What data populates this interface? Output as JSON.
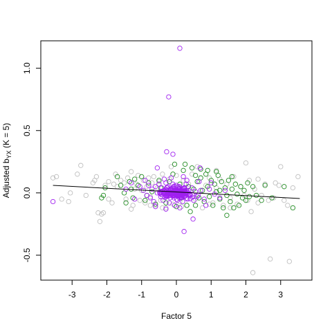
{
  "chart_data": {
    "type": "scatter",
    "xlabel": "Factor 5",
    "ylabel": {
      "main": "Adjusted b",
      "sub": "YX",
      "suffix": " (K = 5)"
    },
    "xlim": [
      -3.9,
      3.9
    ],
    "ylim": [
      -0.7,
      1.22
    ],
    "xticks": [
      -3,
      -2,
      -1,
      0,
      1,
      2,
      3
    ],
    "yticks": [
      -0.5,
      0.0,
      0.5,
      1.0
    ],
    "xtick_labels": [
      "-3",
      "-2",
      "-1",
      "0",
      "1",
      "2",
      "3"
    ],
    "ytick_labels": [
      "-0.5",
      "0.0",
      "0.5",
      "1.0"
    ],
    "grid": false,
    "legend": "none",
    "colors": {
      "gray": "#bebebe",
      "green": "#228b22",
      "purple": "#a020f0",
      "line": "#000000"
    },
    "regression_line": {
      "x": [
        -3.55,
        3.55
      ],
      "y": [
        0.06,
        -0.045
      ]
    },
    "series": [
      {
        "color": "gray",
        "points": [
          [
            -3.55,
            0.12
          ],
          [
            -3.45,
            0.13
          ],
          [
            -3.3,
            -0.05
          ],
          [
            -3.1,
            -0.07
          ],
          [
            -3.05,
            0.0
          ],
          [
            -2.85,
            0.15
          ],
          [
            -2.75,
            0.22
          ],
          [
            -2.6,
            -0.02
          ],
          [
            -2.4,
            0.08
          ],
          [
            -2.3,
            0.13
          ],
          [
            -2.25,
            -0.16
          ],
          [
            -2.2,
            -0.23
          ],
          [
            -2.15,
            -0.17
          ],
          [
            -2.1,
            -0.16
          ],
          [
            -2.05,
            0.06
          ],
          [
            -1.95,
            0.09
          ],
          [
            -1.85,
            -0.08
          ],
          [
            -1.8,
            0.07
          ],
          [
            -1.75,
            0.15
          ],
          [
            -1.7,
            0.05
          ],
          [
            -1.6,
            0.1
          ],
          [
            -1.5,
            0.08
          ],
          [
            -1.45,
            -0.05
          ],
          [
            -1.4,
            0.12
          ],
          [
            -1.3,
            0.17
          ],
          [
            -1.25,
            -0.1
          ],
          [
            -1.2,
            0.03
          ],
          [
            -1.15,
            0.07
          ],
          [
            -1.1,
            0.14
          ],
          [
            -1.05,
            -0.06
          ],
          [
            -1.0,
            0.02
          ],
          [
            -0.95,
            0.1
          ],
          [
            -0.9,
            -0.08
          ],
          [
            -0.85,
            0.05
          ],
          [
            -0.8,
            0.12
          ],
          [
            -0.75,
            -0.03
          ],
          [
            -0.7,
            0.08
          ],
          [
            -0.65,
            0.13
          ],
          [
            -0.6,
            -0.1
          ],
          [
            -0.55,
            0.04
          ],
          [
            -0.5,
            0.09
          ],
          [
            -0.45,
            -0.06
          ],
          [
            -0.4,
            0.15
          ],
          [
            -0.35,
            0.02
          ],
          [
            -0.3,
            -0.12
          ],
          [
            -0.2,
            0.11
          ],
          [
            -0.1,
            -0.09
          ],
          [
            0.0,
            0.14
          ],
          [
            0.1,
            -0.07
          ],
          [
            0.2,
            0.1
          ],
          [
            0.3,
            -0.1
          ],
          [
            0.35,
            0.07
          ],
          [
            0.45,
            0.15
          ],
          [
            0.55,
            -0.05
          ],
          [
            0.65,
            0.09
          ],
          [
            0.75,
            -0.12
          ],
          [
            0.85,
            0.06
          ],
          [
            0.95,
            0.12
          ],
          [
            1.05,
            -0.08
          ],
          [
            1.15,
            0.04
          ],
          [
            1.25,
            0.11
          ],
          [
            1.35,
            -0.1
          ],
          [
            1.45,
            0.07
          ],
          [
            1.55,
            -0.04
          ],
          [
            1.65,
            0.13
          ],
          [
            1.75,
            -0.09
          ],
          [
            1.85,
            0.05
          ],
          [
            1.95,
            -0.02
          ],
          [
            2.0,
            0.24
          ],
          [
            2.05,
            -0.06
          ],
          [
            2.1,
            0.1
          ],
          [
            2.15,
            -0.15
          ],
          [
            2.2,
            -0.64
          ],
          [
            2.25,
            0.03
          ],
          [
            2.35,
            -0.08
          ],
          [
            2.45,
            -0.02
          ],
          [
            2.55,
            0.07
          ],
          [
            2.65,
            -0.06
          ],
          [
            2.7,
            -0.53
          ],
          [
            2.8,
            -0.04
          ],
          [
            2.95,
            0.06
          ],
          [
            3.0,
            0.21
          ],
          [
            3.1,
            -0.06
          ],
          [
            3.2,
            -0.1
          ],
          [
            3.25,
            -0.55
          ],
          [
            3.35,
            0.04
          ],
          [
            3.5,
            0.13
          ],
          [
            -0.15,
            0.21
          ],
          [
            0.6,
            0.21
          ],
          [
            1.15,
            0.18
          ],
          [
            -1.3,
            -0.13
          ],
          [
            -0.4,
            -0.12
          ],
          [
            0.15,
            -0.11
          ],
          [
            0.95,
            -0.09
          ],
          [
            1.55,
            -0.12
          ],
          [
            -2.35,
            0.1
          ],
          [
            -1.95,
            -0.05
          ],
          [
            2.35,
            0.11
          ],
          [
            2.85,
            0.08
          ],
          [
            -0.75,
            -0.1
          ]
        ]
      },
      {
        "color": "green",
        "points": [
          [
            -2.15,
            -0.04
          ],
          [
            -2.1,
            -0.02
          ],
          [
            -2.05,
            0.04
          ],
          [
            -1.7,
            0.13
          ],
          [
            -1.6,
            0.06
          ],
          [
            -1.5,
            0.0
          ],
          [
            -1.45,
            -0.08
          ],
          [
            -1.35,
            0.09
          ],
          [
            -1.3,
            0.03
          ],
          [
            -1.25,
            -0.04
          ],
          [
            -1.2,
            0.11
          ],
          [
            -1.1,
            0.06
          ],
          [
            -1.0,
            0.13
          ],
          [
            -0.9,
            -0.06
          ],
          [
            -0.8,
            0.08
          ],
          [
            -0.7,
            0.01
          ],
          [
            -0.6,
            -0.09
          ],
          [
            -0.5,
            0.1
          ],
          [
            -0.45,
            0.04
          ],
          [
            -0.3,
            -0.08
          ],
          [
            -0.2,
            0.09
          ],
          [
            -0.1,
            0.15
          ],
          [
            0.0,
            -0.11
          ],
          [
            0.1,
            0.07
          ],
          [
            0.2,
            0.18
          ],
          [
            0.3,
            -0.1
          ],
          [
            0.35,
            0.05
          ],
          [
            0.45,
            0.2
          ],
          [
            0.5,
            0.03
          ],
          [
            0.55,
            -0.1
          ],
          [
            0.6,
            0.09
          ],
          [
            0.65,
            -0.04
          ],
          [
            0.7,
            0.12
          ],
          [
            0.75,
            0.02
          ],
          [
            0.8,
            -0.07
          ],
          [
            0.85,
            0.15
          ],
          [
            0.9,
            0.05
          ],
          [
            0.95,
            -0.03
          ],
          [
            1.0,
            0.1
          ],
          [
            1.05,
            -0.1
          ],
          [
            1.1,
            0.07
          ],
          [
            1.15,
            0.01
          ],
          [
            1.2,
            0.14
          ],
          [
            1.25,
            -0.05
          ],
          [
            1.3,
            0.09
          ],
          [
            1.35,
            -0.12
          ],
          [
            1.4,
            0.04
          ],
          [
            1.45,
            -0.02
          ],
          [
            1.5,
            0.1
          ],
          [
            1.55,
            -0.07
          ],
          [
            1.6,
            0.03
          ],
          [
            1.65,
            -0.12
          ],
          [
            1.7,
            0.07
          ],
          [
            1.75,
            -0.01
          ],
          [
            1.8,
            -0.1
          ],
          [
            1.85,
            0.05
          ],
          [
            1.9,
            -0.04
          ],
          [
            1.95,
            0.02
          ],
          [
            2.0,
            -0.06
          ],
          [
            2.05,
            0.08
          ],
          [
            2.1,
            -0.03
          ],
          [
            2.2,
            0.05
          ],
          [
            2.3,
            -0.02
          ],
          [
            2.45,
            -0.06
          ],
          [
            2.55,
            0.06
          ],
          [
            2.75,
            -0.04
          ],
          [
            3.1,
            0.05
          ],
          [
            3.35,
            -0.12
          ],
          [
            0.25,
            0.23
          ],
          [
            0.7,
            0.19
          ],
          [
            1.15,
            0.17
          ],
          [
            1.45,
            -0.18
          ],
          [
            -0.05,
            0.23
          ],
          [
            0.4,
            -0.15
          ],
          [
            0.9,
            0.18
          ],
          [
            1.6,
            0.13
          ],
          [
            -0.85,
            -0.02
          ],
          [
            0.15,
            -0.04
          ],
          [
            0.55,
            0.14
          ],
          [
            1.25,
            0.02
          ]
        ]
      },
      {
        "color": "purple",
        "points": [
          [
            0.1,
            1.16
          ],
          [
            -0.22,
            0.77
          ],
          [
            -0.28,
            0.33
          ],
          [
            -0.1,
            0.31
          ],
          [
            -0.55,
            0.2
          ],
          [
            0.68,
            0.2
          ],
          [
            -3.55,
            -0.07
          ],
          [
            0.48,
            -0.21
          ],
          [
            0.22,
            -0.31
          ],
          [
            -0.3,
            -0.13
          ],
          [
            -1.45,
            0.03
          ],
          [
            -1.2,
            -0.05
          ],
          [
            -1.05,
            0.05
          ],
          [
            -0.95,
            0.02
          ],
          [
            -0.85,
            -0.02
          ],
          [
            -0.8,
            0.06
          ],
          [
            -0.75,
            -0.04
          ],
          [
            -0.7,
            0.03
          ],
          [
            -0.65,
            -0.07
          ],
          [
            -0.6,
            0.05
          ],
          [
            -0.55,
            0.0
          ],
          [
            -0.5,
            0.07
          ],
          [
            -0.45,
            -0.03
          ],
          [
            -0.42,
            0.04
          ],
          [
            -0.38,
            -0.06
          ],
          [
            -0.35,
            0.02
          ],
          [
            -0.3,
            0.08
          ],
          [
            -0.27,
            -0.02
          ],
          [
            -0.24,
            0.05
          ],
          [
            -0.2,
            -0.08
          ],
          [
            -0.17,
            0.03
          ],
          [
            -0.14,
            0.0
          ],
          [
            -0.1,
            0.07
          ],
          [
            -0.07,
            -0.04
          ],
          [
            -0.04,
            0.02
          ],
          [
            0.0,
            0.06
          ],
          [
            0.03,
            -0.06
          ],
          [
            0.06,
            0.01
          ],
          [
            0.09,
            0.05
          ],
          [
            0.12,
            -0.03
          ],
          [
            0.15,
            0.03
          ],
          [
            0.18,
            -0.07
          ],
          [
            0.22,
            0.04
          ],
          [
            0.25,
            -0.01
          ],
          [
            0.28,
            0.07
          ],
          [
            0.32,
            -0.05
          ],
          [
            0.35,
            0.02
          ],
          [
            0.4,
            -0.02
          ],
          [
            0.45,
            0.04
          ],
          [
            0.5,
            -0.06
          ],
          [
            0.55,
            0.01
          ],
          [
            0.6,
            -0.03
          ],
          [
            0.7,
            0.02
          ],
          [
            0.8,
            -0.05
          ],
          [
            0.95,
            0.03
          ],
          [
            1.1,
            -0.01
          ],
          [
            1.25,
            -0.04
          ],
          [
            1.4,
            0.02
          ],
          [
            -0.05,
            -0.1
          ],
          [
            0.1,
            -0.12
          ],
          [
            -0.35,
            0.11
          ],
          [
            0.3,
            0.1
          ],
          [
            -0.6,
            -0.11
          ],
          [
            0.65,
            0.09
          ],
          [
            -0.9,
            0.1
          ],
          [
            0.85,
            -0.1
          ],
          [
            -0.15,
            0.12
          ],
          [
            0.2,
            0.13
          ],
          [
            -1.3,
            0.08
          ],
          [
            1.0,
            0.08
          ]
        ]
      }
    ],
    "purple_core_points": 150
  }
}
